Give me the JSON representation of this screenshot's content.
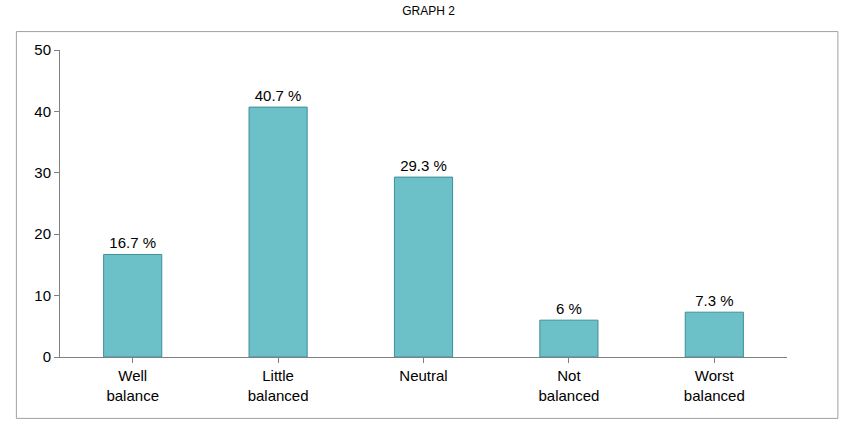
{
  "chart_data": {
    "type": "bar",
    "title": "GRAPH 2",
    "categories": [
      "Well balance",
      "Little balanced",
      "Neutral",
      "Not balanced",
      "Worst balanced"
    ],
    "values": [
      16.7,
      40.7,
      29.3,
      6,
      7.3
    ],
    "value_labels": [
      "16.7 %",
      "40.7 %",
      "29.3 %",
      "6 %",
      "7.3 %"
    ],
    "color": "#6cc0c8",
    "ylim": [
      0,
      50
    ],
    "yticks": [
      0,
      10,
      20,
      30,
      40,
      50
    ],
    "grid": false,
    "data_labels": true
  }
}
